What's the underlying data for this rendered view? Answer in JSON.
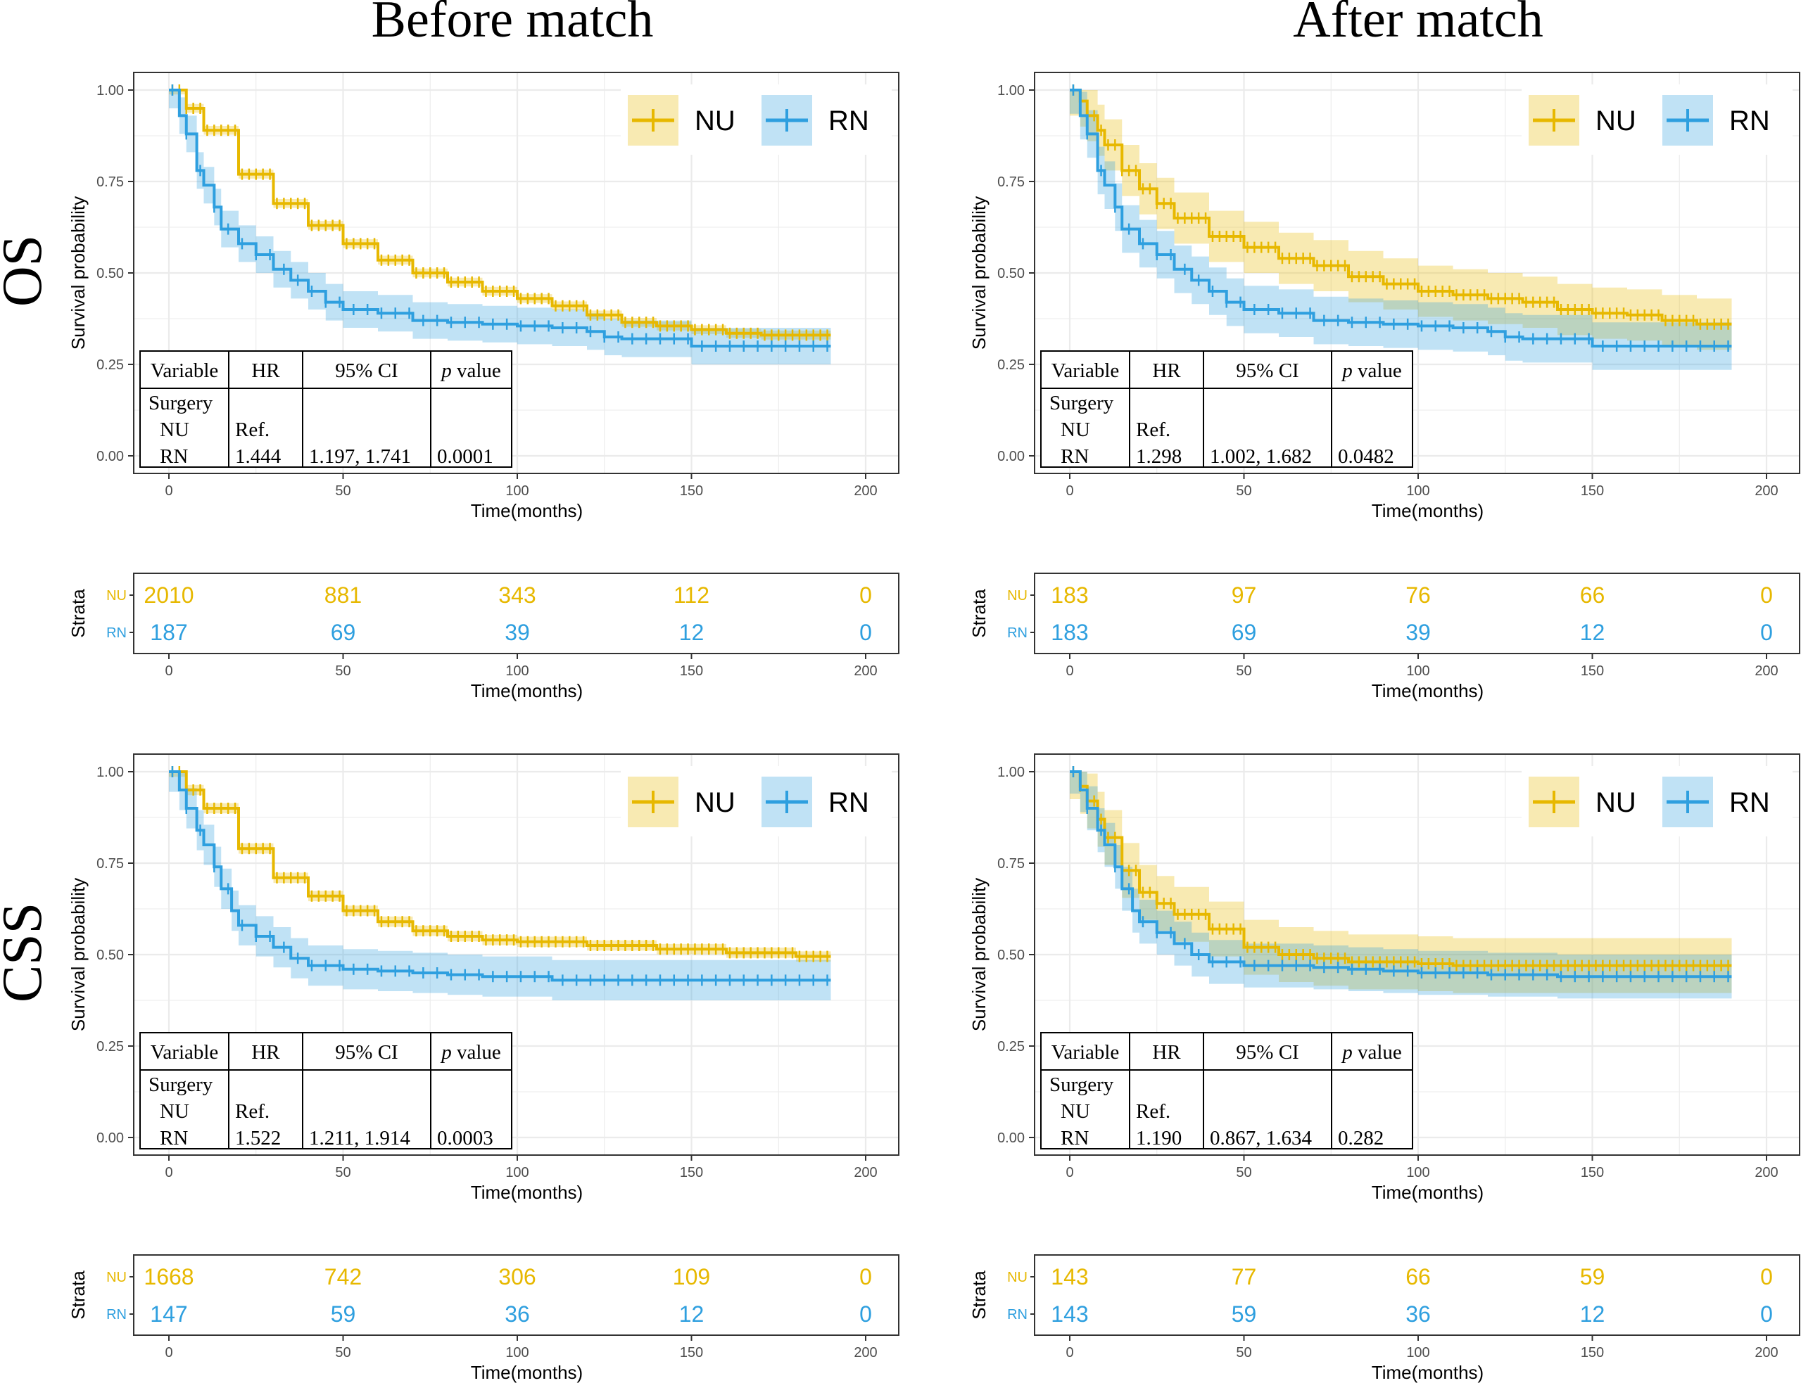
{
  "colors": {
    "nu": "#E7B800",
    "rn": "#2E9FDF",
    "grid": "#EBEBEB",
    "axis": "#333333"
  },
  "column_titles": [
    "Before match",
    "After match"
  ],
  "row_labels": [
    "OS",
    "CSS"
  ],
  "legend": {
    "nu": "NU",
    "rn": "RN"
  },
  "chart_data": [
    {
      "id": "os-before",
      "type": "line",
      "title": "",
      "row": "OS",
      "column": "Before match",
      "xlabel": "Time(months)",
      "ylabel": "Survival probability",
      "xlim": [
        0,
        200
      ],
      "ylim": [
        0,
        1
      ],
      "x_ticks": [
        "0",
        "50",
        "100",
        "150",
        "200"
      ],
      "y_ticks": [
        "0.00",
        "0.25",
        "0.50",
        "0.75",
        "1.00"
      ],
      "series": [
        {
          "name": "NU",
          "censored": true,
          "ci_halfwidth": 0.012,
          "x": [
            0,
            5,
            10,
            20,
            30,
            40,
            50,
            60,
            70,
            80,
            90,
            100,
            110,
            120,
            130,
            140,
            150,
            160,
            170,
            180,
            190
          ],
          "values": [
            1.0,
            0.95,
            0.89,
            0.77,
            0.69,
            0.63,
            0.58,
            0.535,
            0.5,
            0.475,
            0.45,
            0.43,
            0.41,
            0.385,
            0.365,
            0.355,
            0.345,
            0.335,
            0.33,
            0.33,
            0.33
          ]
        },
        {
          "name": "RN",
          "censored": true,
          "ci_halfwidth": 0.05,
          "x": [
            0,
            3,
            5,
            8,
            10,
            13,
            15,
            20,
            25,
            30,
            35,
            40,
            45,
            50,
            60,
            70,
            80,
            90,
            100,
            110,
            120,
            125,
            130,
            140,
            150,
            160,
            170,
            180,
            190
          ],
          "values": [
            1.0,
            0.93,
            0.88,
            0.78,
            0.74,
            0.68,
            0.62,
            0.58,
            0.55,
            0.51,
            0.48,
            0.45,
            0.42,
            0.4,
            0.39,
            0.37,
            0.365,
            0.36,
            0.355,
            0.35,
            0.34,
            0.325,
            0.32,
            0.32,
            0.3,
            0.3,
            0.3,
            0.3,
            0.3
          ]
        }
      ],
      "hr_table": {
        "headers": [
          "Variable",
          "HR",
          "95% CI",
          "p value"
        ],
        "rows": [
          [
            "Surgery",
            "",
            "",
            ""
          ],
          [
            "NU",
            "Ref.",
            "",
            ""
          ],
          [
            "RN",
            "1.444",
            "1.197, 1.741",
            "0.0001"
          ]
        ]
      },
      "risk_table": {
        "ylabel": "Strata",
        "xlabel": "Time(months)",
        "times": [
          "0",
          "50",
          "100",
          "150",
          "200"
        ],
        "rows": [
          {
            "label": "NU",
            "values": [
              "2010",
              "881",
              "343",
              "112",
              "0"
            ]
          },
          {
            "label": "RN",
            "values": [
              "187",
              "69",
              "39",
              "12",
              "0"
            ]
          }
        ]
      }
    },
    {
      "id": "os-after",
      "type": "line",
      "title": "",
      "row": "OS",
      "column": "After match",
      "xlabel": "Time(months)",
      "ylabel": "Survival probability",
      "xlim": [
        0,
        200
      ],
      "ylim": [
        0,
        1
      ],
      "x_ticks": [
        "0",
        "50",
        "100",
        "150",
        "200"
      ],
      "y_ticks": [
        "0.00",
        "0.25",
        "0.50",
        "0.75",
        "1.00"
      ],
      "series": [
        {
          "name": "NU",
          "censored": true,
          "ci_halfwidth": 0.07,
          "x": [
            0,
            3,
            5,
            8,
            10,
            15,
            20,
            25,
            30,
            40,
            50,
            60,
            70,
            80,
            90,
            100,
            110,
            120,
            130,
            140,
            150,
            160,
            170,
            180,
            190
          ],
          "values": [
            1.0,
            0.97,
            0.93,
            0.89,
            0.85,
            0.78,
            0.73,
            0.69,
            0.65,
            0.6,
            0.57,
            0.54,
            0.52,
            0.49,
            0.47,
            0.45,
            0.44,
            0.43,
            0.42,
            0.4,
            0.39,
            0.385,
            0.37,
            0.36,
            0.36
          ]
        },
        {
          "name": "RN",
          "censored": true,
          "ci_halfwidth": 0.065,
          "x": [
            0,
            3,
            5,
            8,
            10,
            13,
            15,
            20,
            25,
            30,
            35,
            40,
            45,
            50,
            60,
            70,
            80,
            90,
            100,
            110,
            120,
            125,
            130,
            140,
            150,
            160,
            170,
            180,
            190
          ],
          "values": [
            1.0,
            0.93,
            0.88,
            0.78,
            0.74,
            0.68,
            0.62,
            0.58,
            0.55,
            0.51,
            0.48,
            0.45,
            0.42,
            0.4,
            0.39,
            0.37,
            0.365,
            0.36,
            0.355,
            0.35,
            0.34,
            0.325,
            0.32,
            0.32,
            0.3,
            0.3,
            0.3,
            0.3,
            0.3
          ]
        }
      ],
      "hr_table": {
        "headers": [
          "Variable",
          "HR",
          "95% CI",
          "p value"
        ],
        "rows": [
          [
            "Surgery",
            "",
            "",
            ""
          ],
          [
            "NU",
            "Ref.",
            "",
            ""
          ],
          [
            "RN",
            "1.298",
            "1.002, 1.682",
            "0.0482"
          ]
        ]
      },
      "risk_table": {
        "ylabel": "Strata",
        "xlabel": "Time(months)",
        "times": [
          "0",
          "50",
          "100",
          "150",
          "200"
        ],
        "rows": [
          {
            "label": "NU",
            "values": [
              "183",
              "97",
              "76",
              "66",
              "0"
            ]
          },
          {
            "label": "RN",
            "values": [
              "183",
              "69",
              "39",
              "12",
              "0"
            ]
          }
        ]
      }
    },
    {
      "id": "css-before",
      "type": "line",
      "title": "",
      "row": "CSS",
      "column": "Before match",
      "xlabel": "Time(months)",
      "ylabel": "Survival probability",
      "xlim": [
        0,
        200
      ],
      "ylim": [
        0,
        1
      ],
      "x_ticks": [
        "0",
        "50",
        "100",
        "150",
        "200"
      ],
      "y_ticks": [
        "0.00",
        "0.25",
        "0.50",
        "0.75",
        "1.00"
      ],
      "series": [
        {
          "name": "NU",
          "censored": true,
          "ci_halfwidth": 0.014,
          "x": [
            0,
            5,
            10,
            20,
            30,
            40,
            50,
            60,
            70,
            80,
            90,
            100,
            120,
            140,
            160,
            180,
            190
          ],
          "values": [
            1.0,
            0.95,
            0.9,
            0.79,
            0.71,
            0.66,
            0.62,
            0.59,
            0.565,
            0.55,
            0.54,
            0.535,
            0.525,
            0.515,
            0.505,
            0.495,
            0.495
          ]
        },
        {
          "name": "RN",
          "censored": true,
          "ci_halfwidth": 0.055,
          "x": [
            0,
            3,
            5,
            8,
            10,
            13,
            15,
            18,
            20,
            25,
            30,
            35,
            40,
            50,
            60,
            70,
            80,
            90,
            100,
            110,
            120,
            140,
            160,
            180,
            190
          ],
          "values": [
            1.0,
            0.95,
            0.9,
            0.84,
            0.8,
            0.74,
            0.68,
            0.62,
            0.58,
            0.55,
            0.52,
            0.49,
            0.47,
            0.46,
            0.455,
            0.45,
            0.445,
            0.44,
            0.44,
            0.43,
            0.43,
            0.43,
            0.43,
            0.43,
            0.43
          ]
        }
      ],
      "hr_table": {
        "headers": [
          "Variable",
          "HR",
          "95% CI",
          "p value"
        ],
        "rows": [
          [
            "Surgery",
            "",
            "",
            ""
          ],
          [
            "NU",
            "Ref.",
            "",
            ""
          ],
          [
            "RN",
            "1.522",
            "1.211, 1.914",
            "0.0003"
          ]
        ]
      },
      "risk_table": {
        "ylabel": "Strata",
        "xlabel": "Time(months)",
        "times": [
          "0",
          "50",
          "100",
          "150",
          "200"
        ],
        "rows": [
          {
            "label": "NU",
            "values": [
              "1668",
              "742",
              "306",
              "109",
              "0"
            ]
          },
          {
            "label": "RN",
            "values": [
              "147",
              "59",
              "36",
              "12",
              "0"
            ]
          }
        ]
      }
    },
    {
      "id": "css-after",
      "type": "line",
      "title": "",
      "row": "CSS",
      "column": "After match",
      "xlabel": "Time(months)",
      "ylabel": "Survival probability",
      "xlim": [
        0,
        200
      ],
      "ylim": [
        0,
        1
      ],
      "x_ticks": [
        "0",
        "50",
        "100",
        "150",
        "200"
      ],
      "y_ticks": [
        "0.00",
        "0.25",
        "0.50",
        "0.75",
        "1.00"
      ],
      "series": [
        {
          "name": "NU",
          "censored": true,
          "ci_halfwidth": 0.075,
          "x": [
            0,
            3,
            5,
            8,
            10,
            15,
            20,
            25,
            30,
            40,
            50,
            60,
            70,
            80,
            90,
            100,
            110,
            120,
            140,
            160,
            180,
            190
          ],
          "values": [
            1.0,
            0.96,
            0.92,
            0.87,
            0.82,
            0.73,
            0.67,
            0.64,
            0.61,
            0.57,
            0.52,
            0.5,
            0.49,
            0.48,
            0.48,
            0.475,
            0.47,
            0.47,
            0.47,
            0.47,
            0.47,
            0.47
          ]
        },
        {
          "name": "RN",
          "censored": true,
          "ci_halfwidth": 0.06,
          "x": [
            0,
            3,
            5,
            8,
            10,
            13,
            15,
            18,
            20,
            25,
            30,
            35,
            40,
            50,
            60,
            70,
            80,
            90,
            100,
            110,
            120,
            140,
            160,
            180,
            190
          ],
          "values": [
            1.0,
            0.95,
            0.9,
            0.84,
            0.8,
            0.74,
            0.68,
            0.62,
            0.59,
            0.56,
            0.53,
            0.5,
            0.48,
            0.47,
            0.47,
            0.465,
            0.46,
            0.455,
            0.45,
            0.45,
            0.445,
            0.44,
            0.44,
            0.44,
            0.44
          ]
        }
      ],
      "hr_table": {
        "headers": [
          "Variable",
          "HR",
          "95% CI",
          "p value"
        ],
        "rows": [
          [
            "Surgery",
            "",
            "",
            ""
          ],
          [
            "NU",
            "Ref.",
            "",
            ""
          ],
          [
            "RN",
            "1.190",
            "0.867, 1.634",
            "0.282"
          ]
        ]
      },
      "risk_table": {
        "ylabel": "Strata",
        "xlabel": "Time(months)",
        "times": [
          "0",
          "50",
          "100",
          "150",
          "200"
        ],
        "rows": [
          {
            "label": "NU",
            "values": [
              "143",
              "77",
              "66",
              "59",
              "0"
            ]
          },
          {
            "label": "RN",
            "values": [
              "143",
              "59",
              "36",
              "12",
              "0"
            ]
          }
        ]
      }
    }
  ]
}
